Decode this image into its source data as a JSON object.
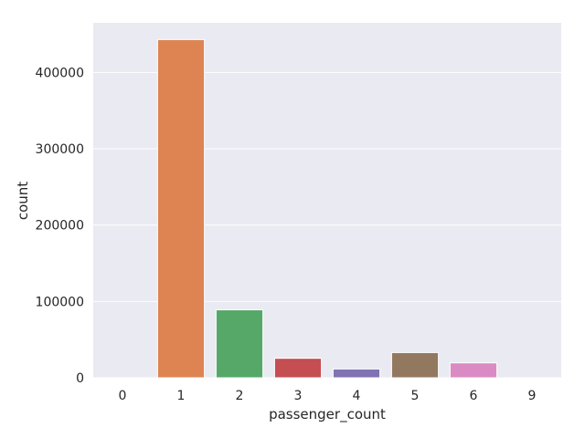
{
  "chart_data": {
    "type": "bar",
    "title": "",
    "xlabel": "passenger_count",
    "ylabel": "count",
    "categories": [
      "0",
      "1",
      "2",
      "3",
      "4",
      "5",
      "6",
      "9"
    ],
    "values": [
      100,
      443000,
      89000,
      25500,
      11500,
      33000,
      19500,
      100
    ],
    "colors": [
      "#4c72b0",
      "#dd8452",
      "#55a868",
      "#c44e52",
      "#8172b3",
      "#937860",
      "#da8bc3",
      "#8c8c8c"
    ],
    "ylim": [
      0,
      465000
    ],
    "yticks": [
      0,
      100000,
      200000,
      300000,
      400000
    ],
    "ytick_labels": [
      "0",
      "100000",
      "200000",
      "300000",
      "400000"
    ],
    "grid": true,
    "legend": "none",
    "background": "#eaeaf2"
  }
}
